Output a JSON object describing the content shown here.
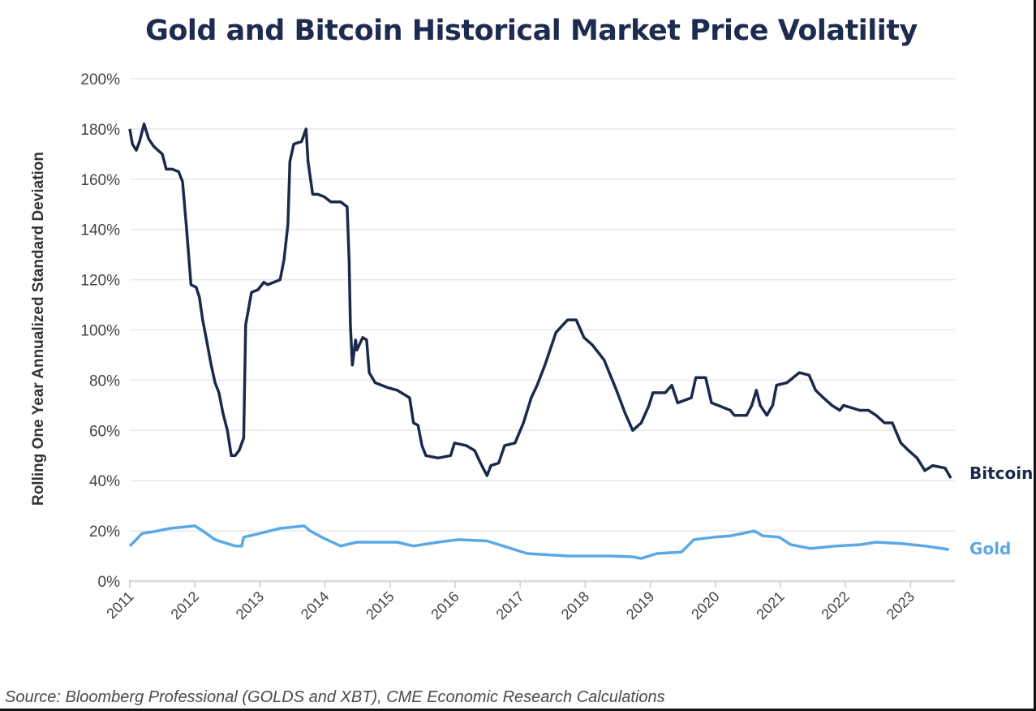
{
  "chart_data": {
    "type": "line",
    "title": "Gold and Bitcoin Historical Market Price Volatility",
    "xlabel": "",
    "ylabel": "Rolling One Year Annualized Standard Deviation",
    "source": "Source: Bloomberg Professional (GOLDS and XBT), CME Economic Research Calculations",
    "xlim": [
      2011,
      2023.7
    ],
    "ylim": [
      0,
      200
    ],
    "x_ticks": [
      "2011",
      "2012",
      "2013",
      "2014",
      "2015",
      "2016",
      "2017",
      "2018",
      "2019",
      "2020",
      "2021",
      "2022",
      "2023"
    ],
    "y_ticks": [
      "0%",
      "20%",
      "40%",
      "60%",
      "80%",
      "100%",
      "120%",
      "140%",
      "160%",
      "180%",
      "200%"
    ],
    "grid": "horizontal",
    "legend": "inline labels at line ends (right)",
    "series": [
      {
        "name": "Bitcoin",
        "color": "#1b2a4a",
        "points": [
          [
            2011.0,
            180
          ],
          [
            2011.04,
            174
          ],
          [
            2011.1,
            171.5
          ],
          [
            2011.15,
            175
          ],
          [
            2011.22,
            182
          ],
          [
            2011.29,
            176
          ],
          [
            2011.37,
            173
          ],
          [
            2011.5,
            170
          ],
          [
            2011.56,
            164
          ],
          [
            2011.65,
            164
          ],
          [
            2011.75,
            163
          ],
          [
            2011.81,
            159
          ],
          [
            2011.87,
            141
          ],
          [
            2011.94,
            118
          ],
          [
            2012.02,
            117
          ],
          [
            2012.07,
            113
          ],
          [
            2012.12,
            104
          ],
          [
            2012.18,
            96
          ],
          [
            2012.25,
            86
          ],
          [
            2012.31,
            79
          ],
          [
            2012.37,
            75
          ],
          [
            2012.43,
            67
          ],
          [
            2012.5,
            60
          ],
          [
            2012.56,
            50
          ],
          [
            2012.62,
            50
          ],
          [
            2012.68,
            52
          ],
          [
            2012.75,
            57
          ],
          [
            2012.78,
            102
          ],
          [
            2012.87,
            115
          ],
          [
            2012.97,
            116
          ],
          [
            2013.06,
            119
          ],
          [
            2013.12,
            118
          ],
          [
            2013.31,
            120
          ],
          [
            2013.37,
            128
          ],
          [
            2013.43,
            142
          ],
          [
            2013.46,
            167
          ],
          [
            2013.52,
            174
          ],
          [
            2013.64,
            175
          ],
          [
            2013.71,
            180
          ],
          [
            2013.74,
            167
          ],
          [
            2013.81,
            154
          ],
          [
            2013.89,
            154
          ],
          [
            2013.99,
            153
          ],
          [
            2014.09,
            151
          ],
          [
            2014.24,
            151
          ],
          [
            2014.34,
            149
          ],
          [
            2014.37,
            128
          ],
          [
            2014.39,
            102
          ],
          [
            2014.42,
            86
          ],
          [
            2014.47,
            96
          ],
          [
            2014.49,
            92
          ],
          [
            2014.58,
            97
          ],
          [
            2014.64,
            96
          ],
          [
            2014.68,
            83
          ],
          [
            2014.77,
            79
          ],
          [
            2014.87,
            78
          ],
          [
            2014.97,
            77
          ],
          [
            2015.11,
            76
          ],
          [
            2015.3,
            73
          ],
          [
            2015.36,
            63
          ],
          [
            2015.43,
            62
          ],
          [
            2015.49,
            54
          ],
          [
            2015.55,
            50
          ],
          [
            2015.74,
            49
          ],
          [
            2015.93,
            50
          ],
          [
            2015.99,
            55
          ],
          [
            2016.17,
            54
          ],
          [
            2016.3,
            52
          ],
          [
            2016.39,
            47
          ],
          [
            2016.49,
            42
          ],
          [
            2016.55,
            46
          ],
          [
            2016.67,
            47
          ],
          [
            2016.76,
            54
          ],
          [
            2016.92,
            55
          ],
          [
            2017.05,
            63
          ],
          [
            2017.17,
            73
          ],
          [
            2017.26,
            78
          ],
          [
            2017.38,
            86
          ],
          [
            2017.55,
            99
          ],
          [
            2017.73,
            104
          ],
          [
            2017.86,
            104
          ],
          [
            2017.98,
            97
          ],
          [
            2018.11,
            94
          ],
          [
            2018.29,
            88
          ],
          [
            2018.48,
            76
          ],
          [
            2018.61,
            67
          ],
          [
            2018.73,
            60
          ],
          [
            2018.86,
            63
          ],
          [
            2018.98,
            70
          ],
          [
            2019.04,
            75
          ],
          [
            2019.23,
            75
          ],
          [
            2019.33,
            78
          ],
          [
            2019.42,
            71
          ],
          [
            2019.63,
            73
          ],
          [
            2019.7,
            81
          ],
          [
            2019.85,
            81
          ],
          [
            2019.94,
            71
          ],
          [
            2020.04,
            70
          ],
          [
            2020.23,
            68
          ],
          [
            2020.29,
            66
          ],
          [
            2020.48,
            66
          ],
          [
            2020.56,
            70
          ],
          [
            2020.63,
            76
          ],
          [
            2020.69,
            70
          ],
          [
            2020.79,
            66
          ],
          [
            2020.88,
            70
          ],
          [
            2020.94,
            78
          ],
          [
            2021.1,
            79
          ],
          [
            2021.29,
            83
          ],
          [
            2021.44,
            82
          ],
          [
            2021.54,
            76
          ],
          [
            2021.66,
            73
          ],
          [
            2021.79,
            70
          ],
          [
            2021.91,
            68
          ],
          [
            2021.97,
            70
          ],
          [
            2022.22,
            68
          ],
          [
            2022.35,
            68
          ],
          [
            2022.47,
            66
          ],
          [
            2022.6,
            63
          ],
          [
            2022.72,
            63
          ],
          [
            2022.85,
            55
          ],
          [
            2022.97,
            52
          ],
          [
            2023.1,
            49
          ],
          [
            2023.22,
            44
          ],
          [
            2023.34,
            46
          ],
          [
            2023.53,
            45
          ],
          [
            2023.62,
            41
          ]
        ]
      },
      {
        "name": "Gold",
        "color": "#5aa8e6",
        "points": [
          [
            2011.0,
            14
          ],
          [
            2011.06,
            15.5
          ],
          [
            2011.19,
            19
          ],
          [
            2011.37,
            19.7
          ],
          [
            2011.62,
            21
          ],
          [
            2012.0,
            22
          ],
          [
            2012.12,
            20
          ],
          [
            2012.31,
            16.5
          ],
          [
            2012.62,
            14
          ],
          [
            2012.72,
            14
          ],
          [
            2012.75,
            17.5
          ],
          [
            2013.0,
            19
          ],
          [
            2013.31,
            21
          ],
          [
            2013.68,
            22
          ],
          [
            2013.77,
            20
          ],
          [
            2013.99,
            17
          ],
          [
            2014.24,
            14
          ],
          [
            2014.49,
            15.5
          ],
          [
            2014.87,
            15.5
          ],
          [
            2015.11,
            15.5
          ],
          [
            2015.36,
            14
          ],
          [
            2015.74,
            15.5
          ],
          [
            2016.05,
            16.5
          ],
          [
            2016.49,
            16
          ],
          [
            2016.74,
            14
          ],
          [
            2017.11,
            11
          ],
          [
            2017.73,
            10
          ],
          [
            2018.36,
            10
          ],
          [
            2018.73,
            9.7
          ],
          [
            2018.86,
            9
          ],
          [
            2019.1,
            11
          ],
          [
            2019.48,
            11.6
          ],
          [
            2019.67,
            16.5
          ],
          [
            2019.98,
            17.5
          ],
          [
            2020.23,
            18
          ],
          [
            2020.6,
            20
          ],
          [
            2020.73,
            18
          ],
          [
            2020.98,
            17.5
          ],
          [
            2021.16,
            14.5
          ],
          [
            2021.47,
            13
          ],
          [
            2021.85,
            14
          ],
          [
            2022.22,
            14.5
          ],
          [
            2022.47,
            15.5
          ],
          [
            2022.85,
            15
          ],
          [
            2023.22,
            14
          ],
          [
            2023.59,
            12.6
          ]
        ]
      }
    ]
  }
}
